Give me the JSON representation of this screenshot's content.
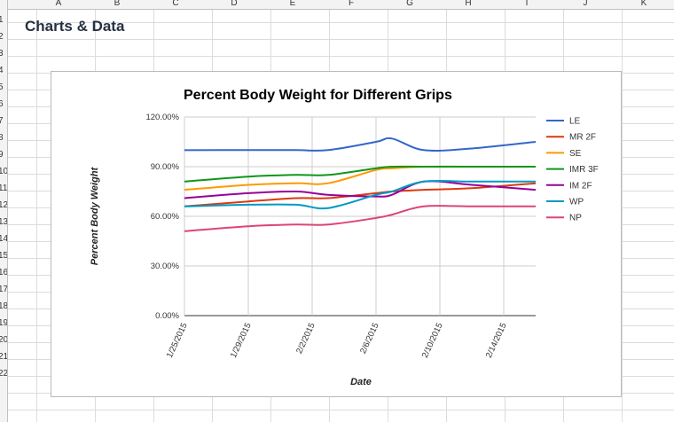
{
  "spreadsheet": {
    "columns": [
      "A",
      "B",
      "C",
      "D",
      "E",
      "F",
      "G",
      "H",
      "I",
      "J",
      "K"
    ],
    "rows": [
      "1",
      "2",
      "3",
      "4",
      "5",
      "6",
      "7",
      "8",
      "9",
      "10",
      "11",
      "12",
      "13",
      "14",
      "15",
      "16",
      "17",
      "18",
      "19",
      "20",
      "21",
      "22"
    ],
    "title_cell": "Charts & Data"
  },
  "chart_data": {
    "type": "line",
    "title": "Percent Body Weight for Different Grips",
    "xlabel": "Date",
    "ylabel": "Percent Body Weight",
    "ylim": [
      0,
      1.2
    ],
    "yticks": [
      "0.00%",
      "30.00%",
      "60.00%",
      "90.00%",
      "120.00%"
    ],
    "xticks": [
      "1/25/2015",
      "1/29/2015",
      "2/2/2015",
      "2/6/2015",
      "2/10/2015",
      "2/14/2015"
    ],
    "xlim": [
      "1/25/2015",
      "2/16/2015"
    ],
    "x": [
      "1/25/2015",
      "1/29/2015",
      "2/1/2015",
      "2/3/2015",
      "2/6/2015",
      "2/7/2015",
      "2/9/2015",
      "2/12/2015",
      "2/16/2015"
    ],
    "legend_position": "right",
    "series": [
      {
        "name": "LE",
        "color": "#3366cc",
        "values": [
          1.0,
          1.0,
          1.0,
          1.0,
          1.05,
          1.07,
          1.0,
          1.01,
          1.05
        ]
      },
      {
        "name": "MR 2F",
        "color": "#dc3912",
        "values": [
          0.66,
          0.69,
          0.71,
          0.71,
          0.74,
          0.75,
          0.76,
          0.77,
          0.8
        ]
      },
      {
        "name": "SE",
        "color": "#ff9900",
        "values": [
          0.76,
          0.79,
          0.8,
          0.8,
          0.88,
          0.89,
          0.9,
          0.9,
          0.9
        ]
      },
      {
        "name": "IMR 3F",
        "color": "#109618",
        "values": [
          0.81,
          0.84,
          0.85,
          0.85,
          0.89,
          0.9,
          0.9,
          0.9,
          0.9
        ]
      },
      {
        "name": "IM 2F",
        "color": "#990099",
        "values": [
          0.71,
          0.74,
          0.75,
          0.73,
          0.72,
          0.73,
          0.81,
          0.79,
          0.76
        ]
      },
      {
        "name": "WP",
        "color": "#0099c6",
        "values": [
          0.66,
          0.67,
          0.67,
          0.65,
          0.73,
          0.75,
          0.81,
          0.81,
          0.81
        ]
      },
      {
        "name": "NP",
        "color": "#dd4477",
        "values": [
          0.51,
          0.54,
          0.55,
          0.55,
          0.59,
          0.61,
          0.66,
          0.66,
          0.66
        ]
      }
    ],
    "grid": true
  }
}
